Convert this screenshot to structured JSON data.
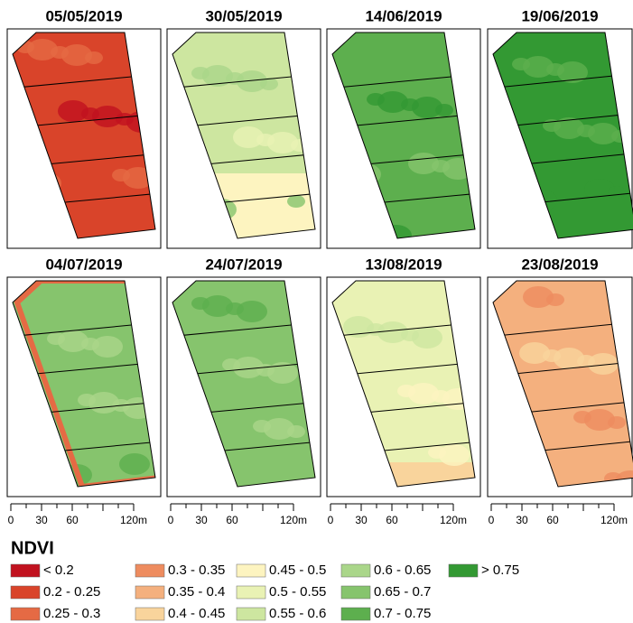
{
  "panels": [
    {
      "title": "05/05/2019"
    },
    {
      "title": "30/05/2019"
    },
    {
      "title": "14/06/2019"
    },
    {
      "title": "19/06/2019"
    },
    {
      "title": "04/07/2019"
    },
    {
      "title": "24/07/2019"
    },
    {
      "title": "13/08/2019"
    },
    {
      "title": "23/08/2019"
    }
  ],
  "scale_bar": {
    "labels": [
      "0",
      "30",
      "60",
      "120m"
    ]
  },
  "legend": {
    "title": "NDVI",
    "items": [
      {
        "label": "< 0.2",
        "color": "#c1121f"
      },
      {
        "label": "0.2 - 0.25",
        "color": "#d9442a"
      },
      {
        "label": "0.25 - 0.3",
        "color": "#e56a44"
      },
      {
        "label": "0.3 - 0.35",
        "color": "#ee8c5f"
      },
      {
        "label": "0.35 - 0.4",
        "color": "#f4b07e"
      },
      {
        "label": "0.4 - 0.45",
        "color": "#f9d49c"
      },
      {
        "label": "0.45 - 0.5",
        "color": "#fdf4c0"
      },
      {
        "label": "0.5 - 0.55",
        "color": "#e9f2b4"
      },
      {
        "label": "0.55 - 0.6",
        "color": "#cde6a0"
      },
      {
        "label": "0.6 - 0.65",
        "color": "#aad68a"
      },
      {
        "label": "0.65 - 0.7",
        "color": "#86c46d"
      },
      {
        "label": "0.7 - 0.75",
        "color": "#5daf4e"
      },
      {
        "label": "> 0.75",
        "color": "#339933"
      }
    ]
  }
}
